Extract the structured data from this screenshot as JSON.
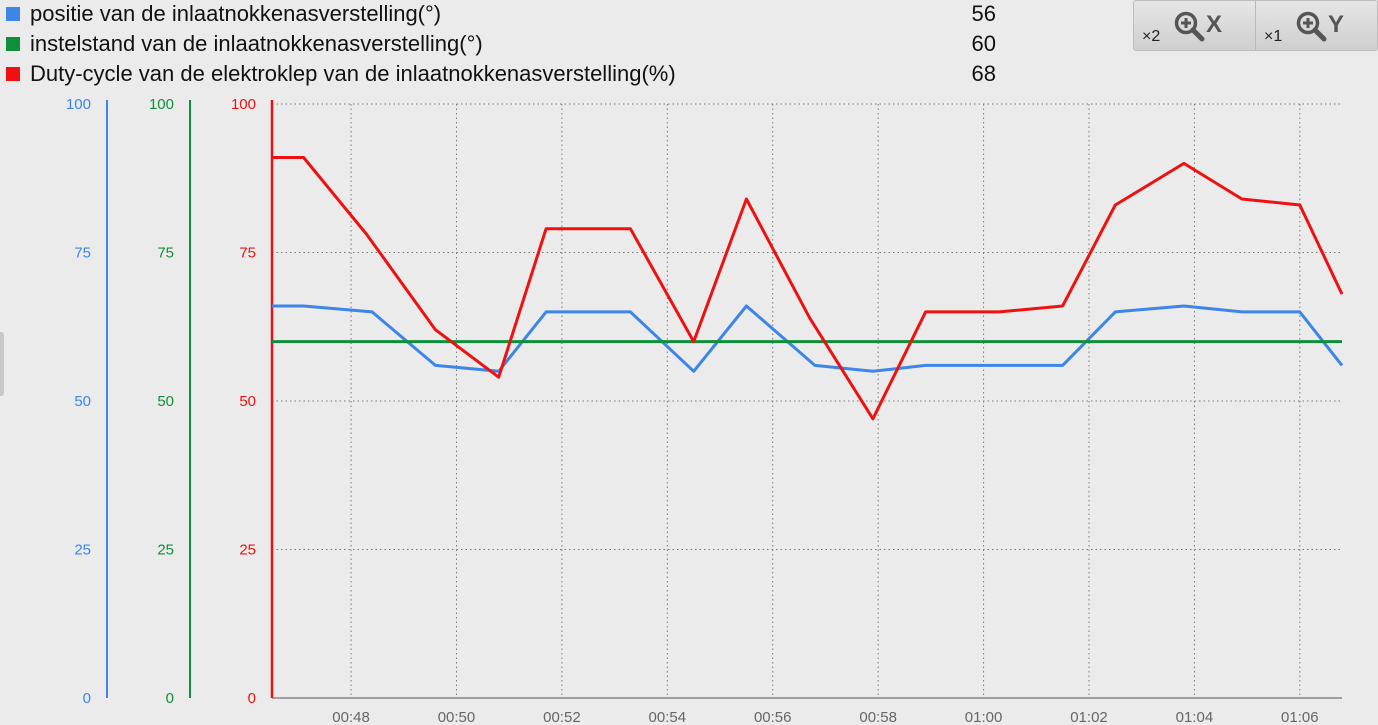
{
  "legend": [
    {
      "label": "positie van de inlaatnokkenasverstelling(°)",
      "value": "56",
      "color": "#3d85e6"
    },
    {
      "label": "instelstand van de inlaatnokkenasverstelling(°)",
      "value": "60",
      "color": "#0f8f3a"
    },
    {
      "label": "Duty-cycle van de elektroklep van de inlaatnokkenasverstelling(%)",
      "value": "68",
      "color": "#ee1111"
    }
  ],
  "zoom": {
    "x": {
      "multiplier": "×2",
      "axis": "X",
      "icon": "zoom-in-icon"
    },
    "y": {
      "multiplier": "×1",
      "axis": "Y",
      "icon": "zoom-in-icon"
    }
  },
  "chart_data": {
    "type": "line",
    "x_ticks": [
      "00:48",
      "00:50",
      "00:52",
      "00:54",
      "00:56",
      "00:58",
      "01:00",
      "01:02",
      "01:04",
      "01:06"
    ],
    "x_tick_minutes": [
      48,
      50,
      52,
      54,
      56,
      58,
      60,
      62,
      64,
      66
    ],
    "xlim_minutes": [
      46.5,
      66.8
    ],
    "ylim": [
      0,
      100
    ],
    "y_ticks": [
      0,
      25,
      50,
      75,
      100
    ],
    "grid": true,
    "y_axes": [
      {
        "color": "#3d85e6",
        "ticks": [
          "0",
          "25",
          "50",
          "75",
          "100"
        ]
      },
      {
        "color": "#0f8f3a",
        "ticks": [
          "0",
          "25",
          "50",
          "75",
          "100"
        ]
      },
      {
        "color": "#ee1111",
        "ticks": [
          "0",
          "25",
          "50",
          "75",
          "100"
        ]
      }
    ],
    "series": [
      {
        "color": "#3d85e6",
        "points": [
          [
            46.5,
            66
          ],
          [
            47.1,
            66
          ],
          [
            48.4,
            65
          ],
          [
            49.6,
            56
          ],
          [
            50.8,
            55
          ],
          [
            51.7,
            65
          ],
          [
            53.3,
            65
          ],
          [
            54.5,
            55
          ],
          [
            55.5,
            66
          ],
          [
            56.8,
            56
          ],
          [
            57.9,
            55
          ],
          [
            58.9,
            56
          ],
          [
            60.3,
            56
          ],
          [
            61.5,
            56
          ],
          [
            62.5,
            65
          ],
          [
            63.8,
            66
          ],
          [
            64.9,
            65
          ],
          [
            66.0,
            65
          ],
          [
            66.8,
            56
          ]
        ]
      },
      {
        "color": "#0f8f3a",
        "points": [
          [
            46.5,
            60
          ],
          [
            66.8,
            60
          ]
        ]
      },
      {
        "color": "#ee1111",
        "points": [
          [
            46.5,
            91
          ],
          [
            47.1,
            91
          ],
          [
            48.3,
            78
          ],
          [
            49.6,
            62
          ],
          [
            50.8,
            54
          ],
          [
            51.7,
            79
          ],
          [
            53.3,
            79
          ],
          [
            54.5,
            60
          ],
          [
            55.5,
            84
          ],
          [
            56.7,
            64
          ],
          [
            57.9,
            47
          ],
          [
            58.9,
            65
          ],
          [
            60.3,
            65
          ],
          [
            61.5,
            66
          ],
          [
            62.5,
            83
          ],
          [
            63.8,
            90
          ],
          [
            64.9,
            84
          ],
          [
            66.0,
            83
          ],
          [
            66.8,
            68
          ]
        ]
      }
    ]
  }
}
